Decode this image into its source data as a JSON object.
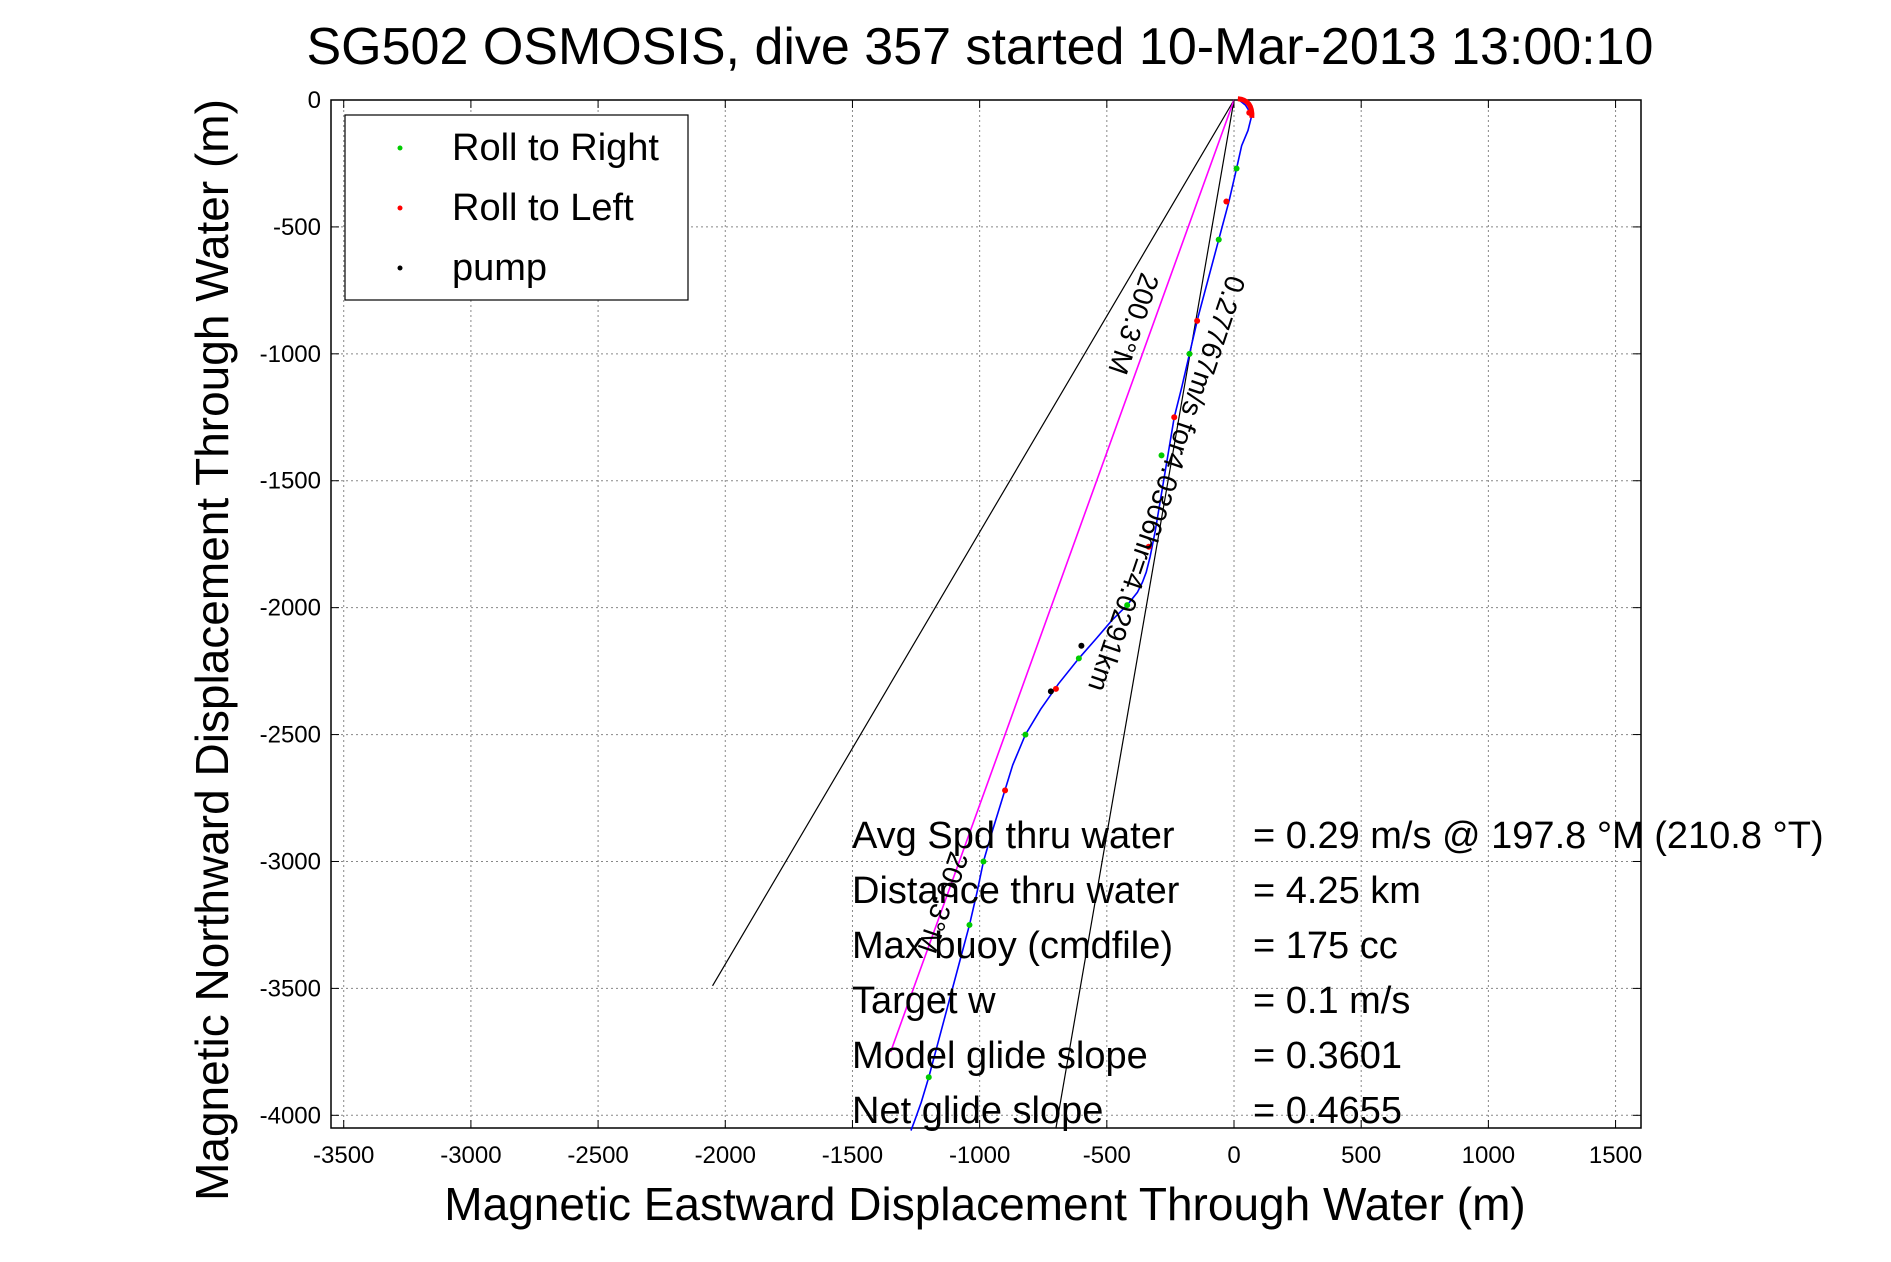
{
  "chart_data": {
    "type": "scatter",
    "title": "SG502 OSMOSIS, dive 357 started 10-Mar-2013 13:00:10",
    "xlabel": "Magnetic Eastward Displacement Through Water (m)",
    "ylabel": "Magnetic Northward Displacement Through Water (m)",
    "xlim": [
      -3550,
      1600
    ],
    "ylim": [
      -4050,
      0
    ],
    "xticks": [
      -3500,
      -3000,
      -2500,
      -2000,
      -1500,
      -1000,
      -500,
      0,
      500,
      1000,
      1500
    ],
    "yticks": [
      0,
      -500,
      -1000,
      -1500,
      -2000,
      -2500,
      -3000,
      -3500,
      -4000
    ],
    "grid": true,
    "legend_position": "top-left",
    "legend": [
      {
        "label": "Roll to Right",
        "color": "#00cc00"
      },
      {
        "label": "Roll to Left",
        "color": "#ff0000"
      },
      {
        "label": "pump",
        "color": "#000000"
      }
    ],
    "series": [
      {
        "name": "track",
        "color": "#0000ff",
        "x": [
          20,
          45,
          70,
          55,
          30,
          10,
          -20,
          -60,
          -100,
          -140,
          -175,
          -205,
          -235,
          -260,
          -285,
          -310,
          -330,
          -345,
          -360,
          -380,
          -420,
          -480,
          -540,
          -610,
          -690,
          -760,
          -820,
          -870,
          -910,
          -950,
          -985,
          -1010,
          -1040,
          -1080,
          -1120,
          -1160,
          -1200,
          -1230,
          -1255,
          -1270
        ],
        "y": [
          0,
          -20,
          -60,
          -120,
          -180,
          -270,
          -400,
          -550,
          -700,
          -850,
          -1000,
          -1130,
          -1250,
          -1400,
          -1550,
          -1700,
          -1800,
          -1860,
          -1900,
          -1940,
          -1990,
          -2050,
          -2120,
          -2200,
          -2300,
          -2400,
          -2500,
          -2620,
          -2750,
          -2880,
          -3000,
          -3120,
          -3250,
          -3400,
          -3550,
          -3700,
          -3850,
          -3950,
          -4020,
          -4060
        ]
      },
      {
        "name": "model",
        "color": "#ff00ff",
        "x": [
          0,
          -1350
        ],
        "y": [
          0,
          -3750
        ]
      }
    ],
    "markers": [
      {
        "type": "Roll to Right",
        "color": "#00cc00",
        "x": [
          10,
          -60,
          -175,
          -285,
          -420,
          -610,
          -820,
          -985,
          -1040,
          -1200
        ],
        "y": [
          -270,
          -550,
          -1000,
          -1400,
          -1990,
          -2200,
          -2500,
          -3000,
          -3250,
          -3850
        ]
      },
      {
        "type": "Roll to Left",
        "color": "#ff0000",
        "x": [
          60,
          -30,
          -145,
          -235,
          -335,
          -700,
          -900
        ],
        "y": [
          -50,
          -400,
          -870,
          -1250,
          -1760,
          -2320,
          -2720
        ]
      },
      {
        "type": "pump",
        "color": "#000000",
        "x": [
          -600,
          -720
        ],
        "y": [
          -2150,
          -2330
        ]
      }
    ],
    "guide_lines": [
      {
        "x": [
          0,
          -2050
        ],
        "y": [
          0,
          -3490
        ]
      },
      {
        "x": [
          0,
          -700
        ],
        "y": [
          0,
          -4050
        ]
      }
    ],
    "annotations": [
      {
        "text": "0.27767m/s for4.0306hr=4.0291km",
        "x": -300,
        "y": -1500
      },
      {
        "text": "200.3°M",
        "x": -430,
        "y": -870
      },
      {
        "text": "200.3°M",
        "x": -1180,
        "y": -3150
      }
    ],
    "stats": [
      {
        "label": "Avg Spd thru water",
        "value": "=  0.29 m/s @ 197.8 °M (210.8 °T)"
      },
      {
        "label": "Distance thru water",
        "value": "=  4.25 km"
      },
      {
        "label": "Max buoy (cmdfile)",
        "value": "= 175 cc"
      },
      {
        "label": "Target w",
        "value": "= 0.1 m/s"
      },
      {
        "label": "Model glide slope",
        "value": "= 0.3601"
      },
      {
        "label": "Net glide slope",
        "value": "= 0.4655"
      }
    ]
  }
}
